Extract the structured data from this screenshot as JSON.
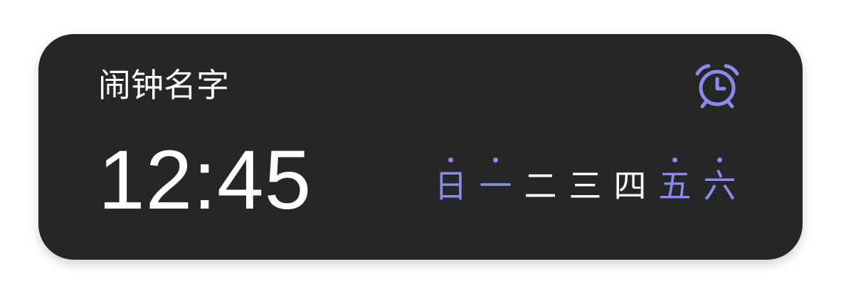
{
  "alarm": {
    "name": "闹钟名字",
    "time": "12:45"
  },
  "icons": {
    "alarm": "alarm-clock-icon"
  },
  "colors": {
    "card_background": "#262626",
    "accent": "#8a8af0",
    "text": "#ffffff"
  },
  "days": [
    {
      "label": "日",
      "active": true
    },
    {
      "label": "一",
      "active": true
    },
    {
      "label": "二",
      "active": false
    },
    {
      "label": "三",
      "active": false
    },
    {
      "label": "四",
      "active": false
    },
    {
      "label": "五",
      "active": true
    },
    {
      "label": "六",
      "active": true
    }
  ]
}
